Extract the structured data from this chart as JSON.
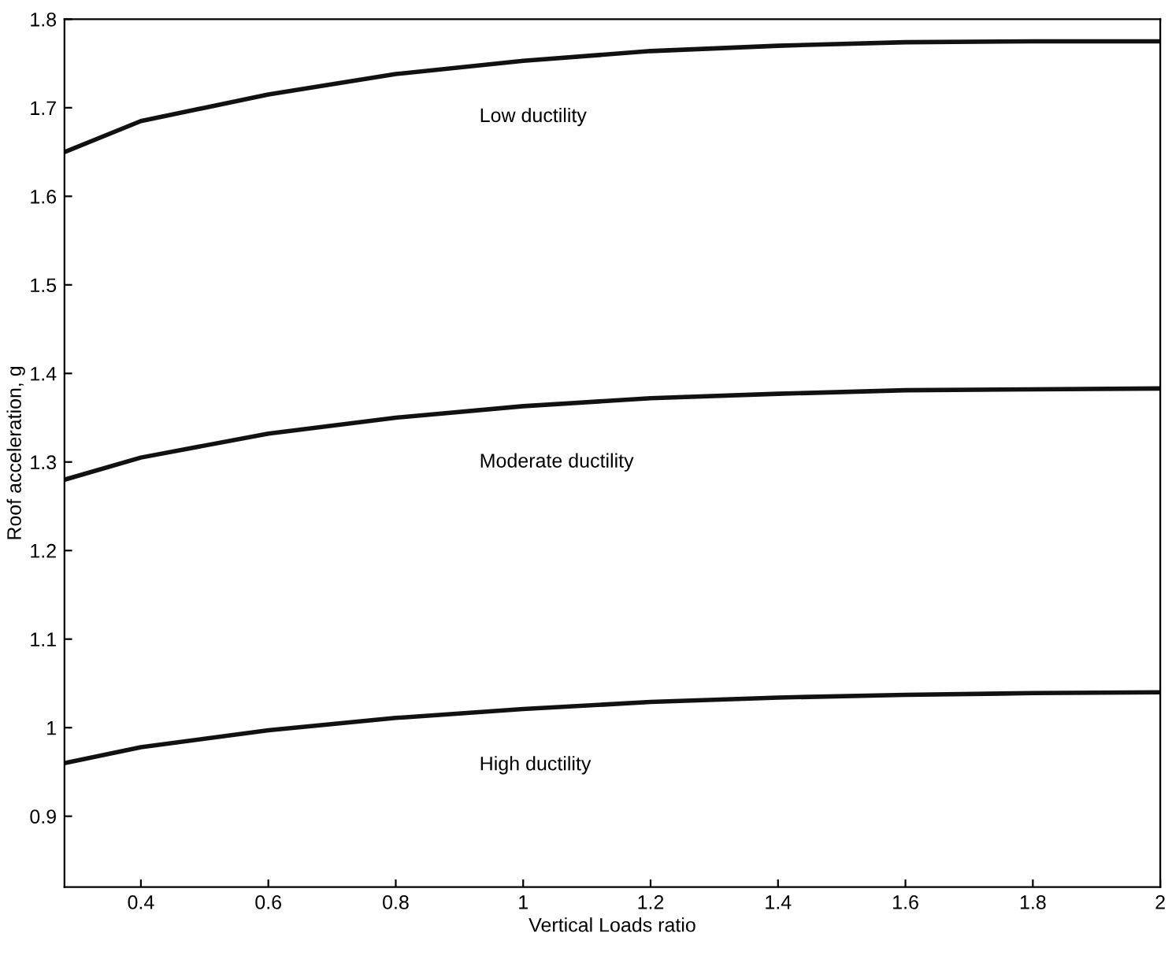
{
  "chart_data": {
    "type": "line",
    "xlabel": "Vertical Loads ratio",
    "ylabel": "Roof acceleration, g",
    "x": [
      0.28,
      0.4,
      0.6,
      0.8,
      1.0,
      1.2,
      1.4,
      1.6,
      1.8,
      2.0
    ],
    "series": [
      {
        "name": "Low ductility",
        "color": "#111111",
        "values": [
          1.65,
          1.685,
          1.715,
          1.738,
          1.753,
          1.764,
          1.77,
          1.774,
          1.775,
          1.775
        ]
      },
      {
        "name": "Moderate ductility",
        "color": "#111111",
        "values": [
          1.28,
          1.305,
          1.332,
          1.35,
          1.363,
          1.372,
          1.377,
          1.381,
          1.382,
          1.383
        ]
      },
      {
        "name": "High ductility",
        "color": "#111111",
        "values": [
          0.96,
          0.978,
          0.997,
          1.011,
          1.021,
          1.029,
          1.034,
          1.037,
          1.039,
          1.04
        ]
      }
    ],
    "xlim": [
      0.28,
      2
    ],
    "ylim": [
      0.82,
      1.8
    ],
    "xticks": [
      0.4,
      0.6,
      0.8,
      1,
      1.2,
      1.4,
      1.6,
      1.8,
      2
    ],
    "yticks": [
      0.9,
      1,
      1.1,
      1.2,
      1.3,
      1.4,
      1.5,
      1.6,
      1.7,
      1.8
    ],
    "grid": false,
    "legend": false,
    "marker": "none",
    "line_style": "solid"
  }
}
